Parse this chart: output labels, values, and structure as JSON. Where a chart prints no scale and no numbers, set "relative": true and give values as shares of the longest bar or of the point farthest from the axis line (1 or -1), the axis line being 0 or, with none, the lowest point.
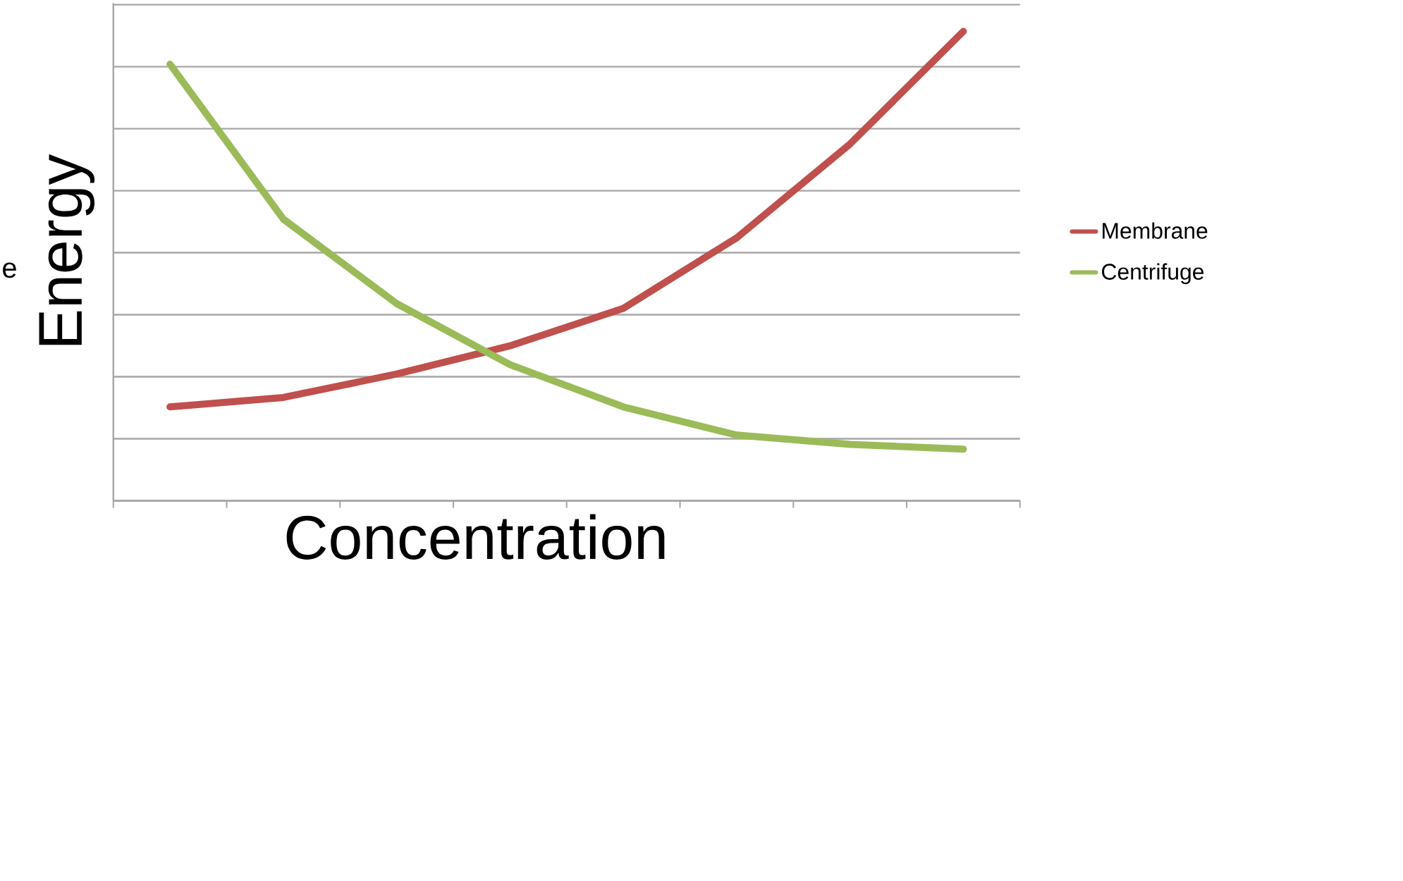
{
  "chart_data": {
    "type": "line",
    "relative": true,
    "xlabel": "Concentration",
    "ylabel": "Energy",
    "categories": [
      null,
      null,
      null,
      null,
      null,
      null,
      null,
      null
    ],
    "series": [
      {
        "name": "Membrane",
        "color": "#c0504d",
        "values": [
          0.2,
          0.22,
          0.27,
          0.33,
          0.41,
          0.56,
          0.76,
          1
        ]
      },
      {
        "name": "Centrifuge",
        "color": "#9bbb59",
        "values": [
          0.93,
          0.6,
          0.42,
          0.29,
          0.2,
          0.14,
          0.12,
          0.11
        ]
      }
    ],
    "grid": "y",
    "legend": "right",
    "tick_labels": false,
    "marker": "none",
    "line_style": "solid",
    "annotations": [
      "e"
    ]
  }
}
